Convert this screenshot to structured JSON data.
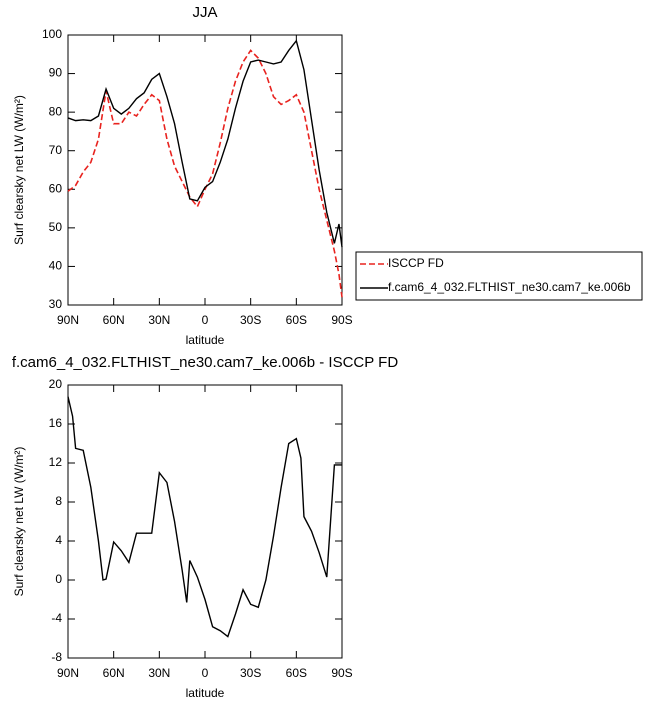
{
  "chart_data": [
    {
      "type": "line",
      "title": "JJA",
      "xlabel": "latitude",
      "ylabel": "Surf clearsky net LW (W/m²)",
      "x": [
        90,
        85,
        80,
        75,
        70,
        65,
        60,
        55,
        50,
        45,
        40,
        35,
        30,
        25,
        20,
        15,
        10,
        5,
        0,
        -5,
        -10,
        -15,
        -20,
        -25,
        -30,
        -35,
        -40,
        -45,
        -50,
        -55,
        -60,
        -65,
        -70,
        -75,
        -80,
        -85,
        -88,
        -90
      ],
      "xlim": [
        90,
        -90
      ],
      "xticks": [
        {
          "value": 90,
          "label": "90N"
        },
        {
          "value": 60,
          "label": "60N"
        },
        {
          "value": 30,
          "label": "30N"
        },
        0,
        {
          "value": -30,
          "label": "30S"
        },
        {
          "value": -60,
          "label": "60S"
        },
        {
          "value": -90,
          "label": "90S"
        }
      ],
      "ylim": [
        30,
        100
      ],
      "yticks": [
        30,
        40,
        50,
        60,
        70,
        80,
        90,
        100
      ],
      "legend": "right",
      "series": [
        {
          "name": "ISCCP FD",
          "color": "#e8231f",
          "line_style": "dashed",
          "values": [
            59.5,
            61,
            64.5,
            67,
            73,
            85.5,
            77,
            77,
            80,
            79,
            82,
            84.5,
            83,
            73,
            66,
            62,
            58,
            55.5,
            60,
            64,
            72,
            81,
            88,
            93,
            96,
            94,
            90,
            84,
            82,
            83,
            84.5,
            80,
            70,
            60,
            52,
            44,
            38,
            32
          ]
        },
        {
          "name": "f.cam6_4_032.FLTHIST_ne30.cam7_ke.006b",
          "color": "#000000",
          "line_style": "solid",
          "values": [
            78.5,
            77.8,
            78,
            77.8,
            79,
            86,
            81,
            79.5,
            81,
            83.5,
            85,
            88.5,
            90,
            84,
            77,
            67,
            57.5,
            57,
            60.5,
            62,
            67,
            73,
            81,
            88,
            93,
            93.5,
            93,
            92.5,
            93,
            96,
            98.5,
            91,
            78,
            65,
            54,
            46,
            51,
            45
          ]
        }
      ]
    },
    {
      "type": "line",
      "title": "f.cam6_4_032.FLTHIST_ne30.cam7_ke.006b - ISCCP FD",
      "xlabel": "latitude",
      "ylabel": "Surf clearsky net LW (W/m²)",
      "x": [
        90,
        87,
        85,
        80,
        75,
        70,
        67,
        65,
        60,
        55,
        50,
        45,
        40,
        35,
        30,
        25,
        20,
        15,
        12,
        10,
        5,
        0,
        -5,
        -10,
        -15,
        -20,
        -25,
        -30,
        -35,
        -40,
        -45,
        -50,
        -55,
        -60,
        -63,
        -65,
        -70,
        -75,
        -80,
        -85,
        -90
      ],
      "xlim": [
        90,
        -90
      ],
      "xticks": [
        {
          "value": 90,
          "label": "90N"
        },
        {
          "value": 60,
          "label": "60N"
        },
        {
          "value": 30,
          "label": "30N"
        },
        0,
        {
          "value": -30,
          "label": "30S"
        },
        {
          "value": -60,
          "label": "60S"
        },
        {
          "value": -90,
          "label": "90S"
        }
      ],
      "ylim": [
        -8,
        20
      ],
      "yticks": [
        -8,
        -4,
        0,
        4,
        8,
        12,
        16,
        20
      ],
      "series": [
        {
          "color": "#000000",
          "line_style": "solid",
          "values": [
            18.8,
            16.8,
            13.5,
            13.3,
            9.5,
            4,
            0,
            0.1,
            3.9,
            3,
            1.8,
            4.8,
            4.8,
            4.8,
            11,
            10,
            6,
            1,
            -2.3,
            2,
            0.3,
            -2,
            -4.8,
            -5.2,
            -5.8,
            -3.5,
            -1,
            -2.5,
            -2.8,
            0,
            4.5,
            9.5,
            14,
            14.5,
            12.5,
            6.5,
            5,
            2.8,
            0.3,
            11.8,
            11.8
          ]
        }
      ]
    }
  ]
}
